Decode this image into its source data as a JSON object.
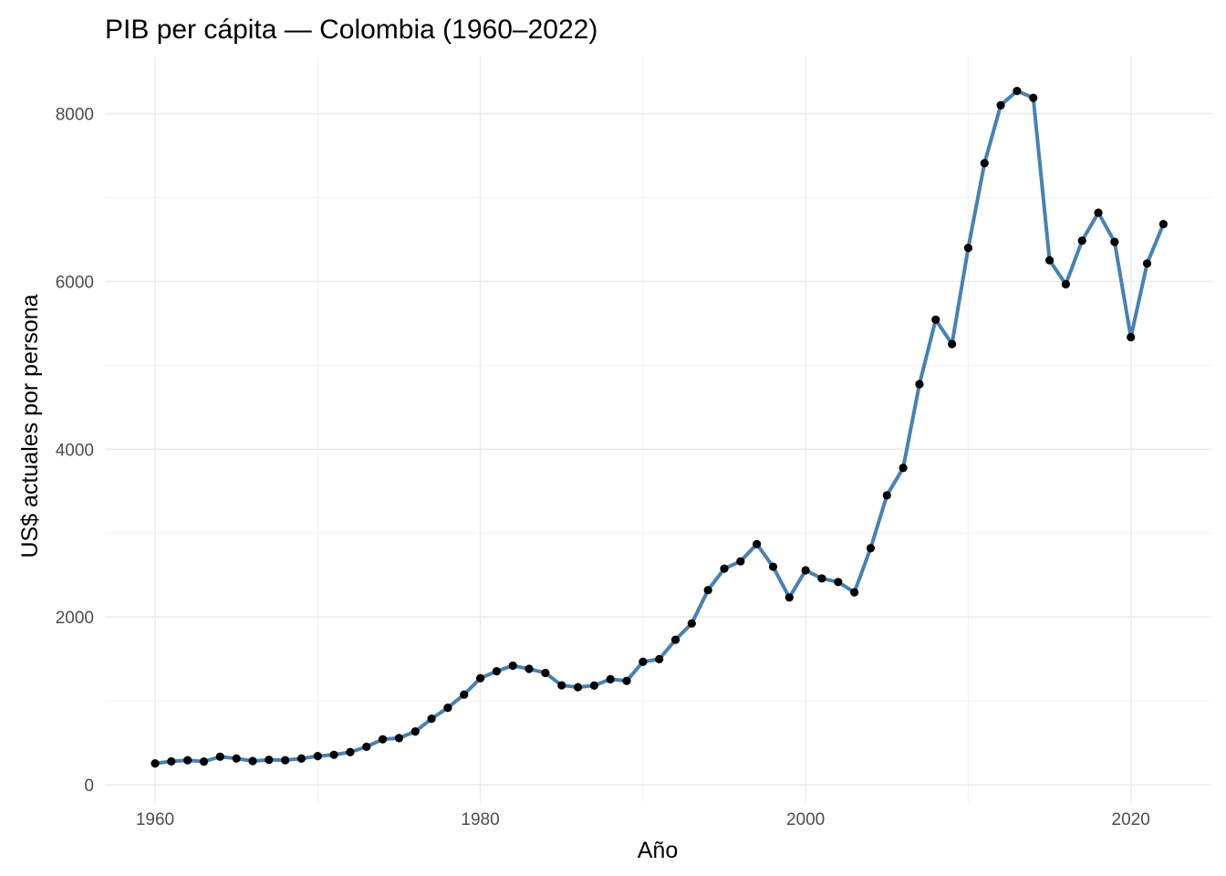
{
  "chart_data": {
    "type": "line",
    "title": "PIB per cápita — Colombia (1960–2022)",
    "xlabel": "Año",
    "ylabel": "US$ actuales por persona",
    "xlim": [
      1960,
      2022
    ],
    "ylim": [
      0,
      8250
    ],
    "x_ticks": [
      1960,
      1980,
      2000,
      2020
    ],
    "y_ticks": [
      0,
      2000,
      4000,
      6000,
      8000
    ],
    "grid": true,
    "legend": "none",
    "series": [
      {
        "line_color": "#4682B4",
        "marker_color": "#000000",
        "x": [
          1960,
          1961,
          1962,
          1963,
          1964,
          1965,
          1966,
          1967,
          1968,
          1969,
          1970,
          1971,
          1972,
          1973,
          1974,
          1975,
          1976,
          1977,
          1978,
          1979,
          1980,
          1981,
          1982,
          1983,
          1984,
          1985,
          1986,
          1987,
          1988,
          1989,
          1990,
          1991,
          1992,
          1993,
          1994,
          1995,
          1996,
          1997,
          1998,
          1999,
          2000,
          2001,
          2002,
          2003,
          2004,
          2005,
          2006,
          2007,
          2008,
          2009,
          2010,
          2011,
          2012,
          2013,
          2014,
          2015,
          2016,
          2017,
          2018,
          2019,
          2020,
          2021,
          2022
        ],
        "values": [
          254,
          279,
          292,
          276,
          334,
          313,
          283,
          297,
          293,
          313,
          341,
          357,
          389,
          453,
          542,
          556,
          635,
          787,
          918,
          1074,
          1270,
          1353,
          1420,
          1381,
          1333,
          1185,
          1163,
          1183,
          1258,
          1238,
          1466,
          1497,
          1728,
          1923,
          2320,
          2576,
          2663,
          2869,
          2599,
          2232,
          2556,
          2459,
          2417,
          2294,
          2820,
          3450,
          3777,
          4775,
          5544,
          5253,
          6398,
          7409,
          8100,
          8270,
          8188,
          6252,
          5966,
          6485,
          6819,
          6470,
          5335,
          6213,
          6683
        ]
      }
    ]
  }
}
